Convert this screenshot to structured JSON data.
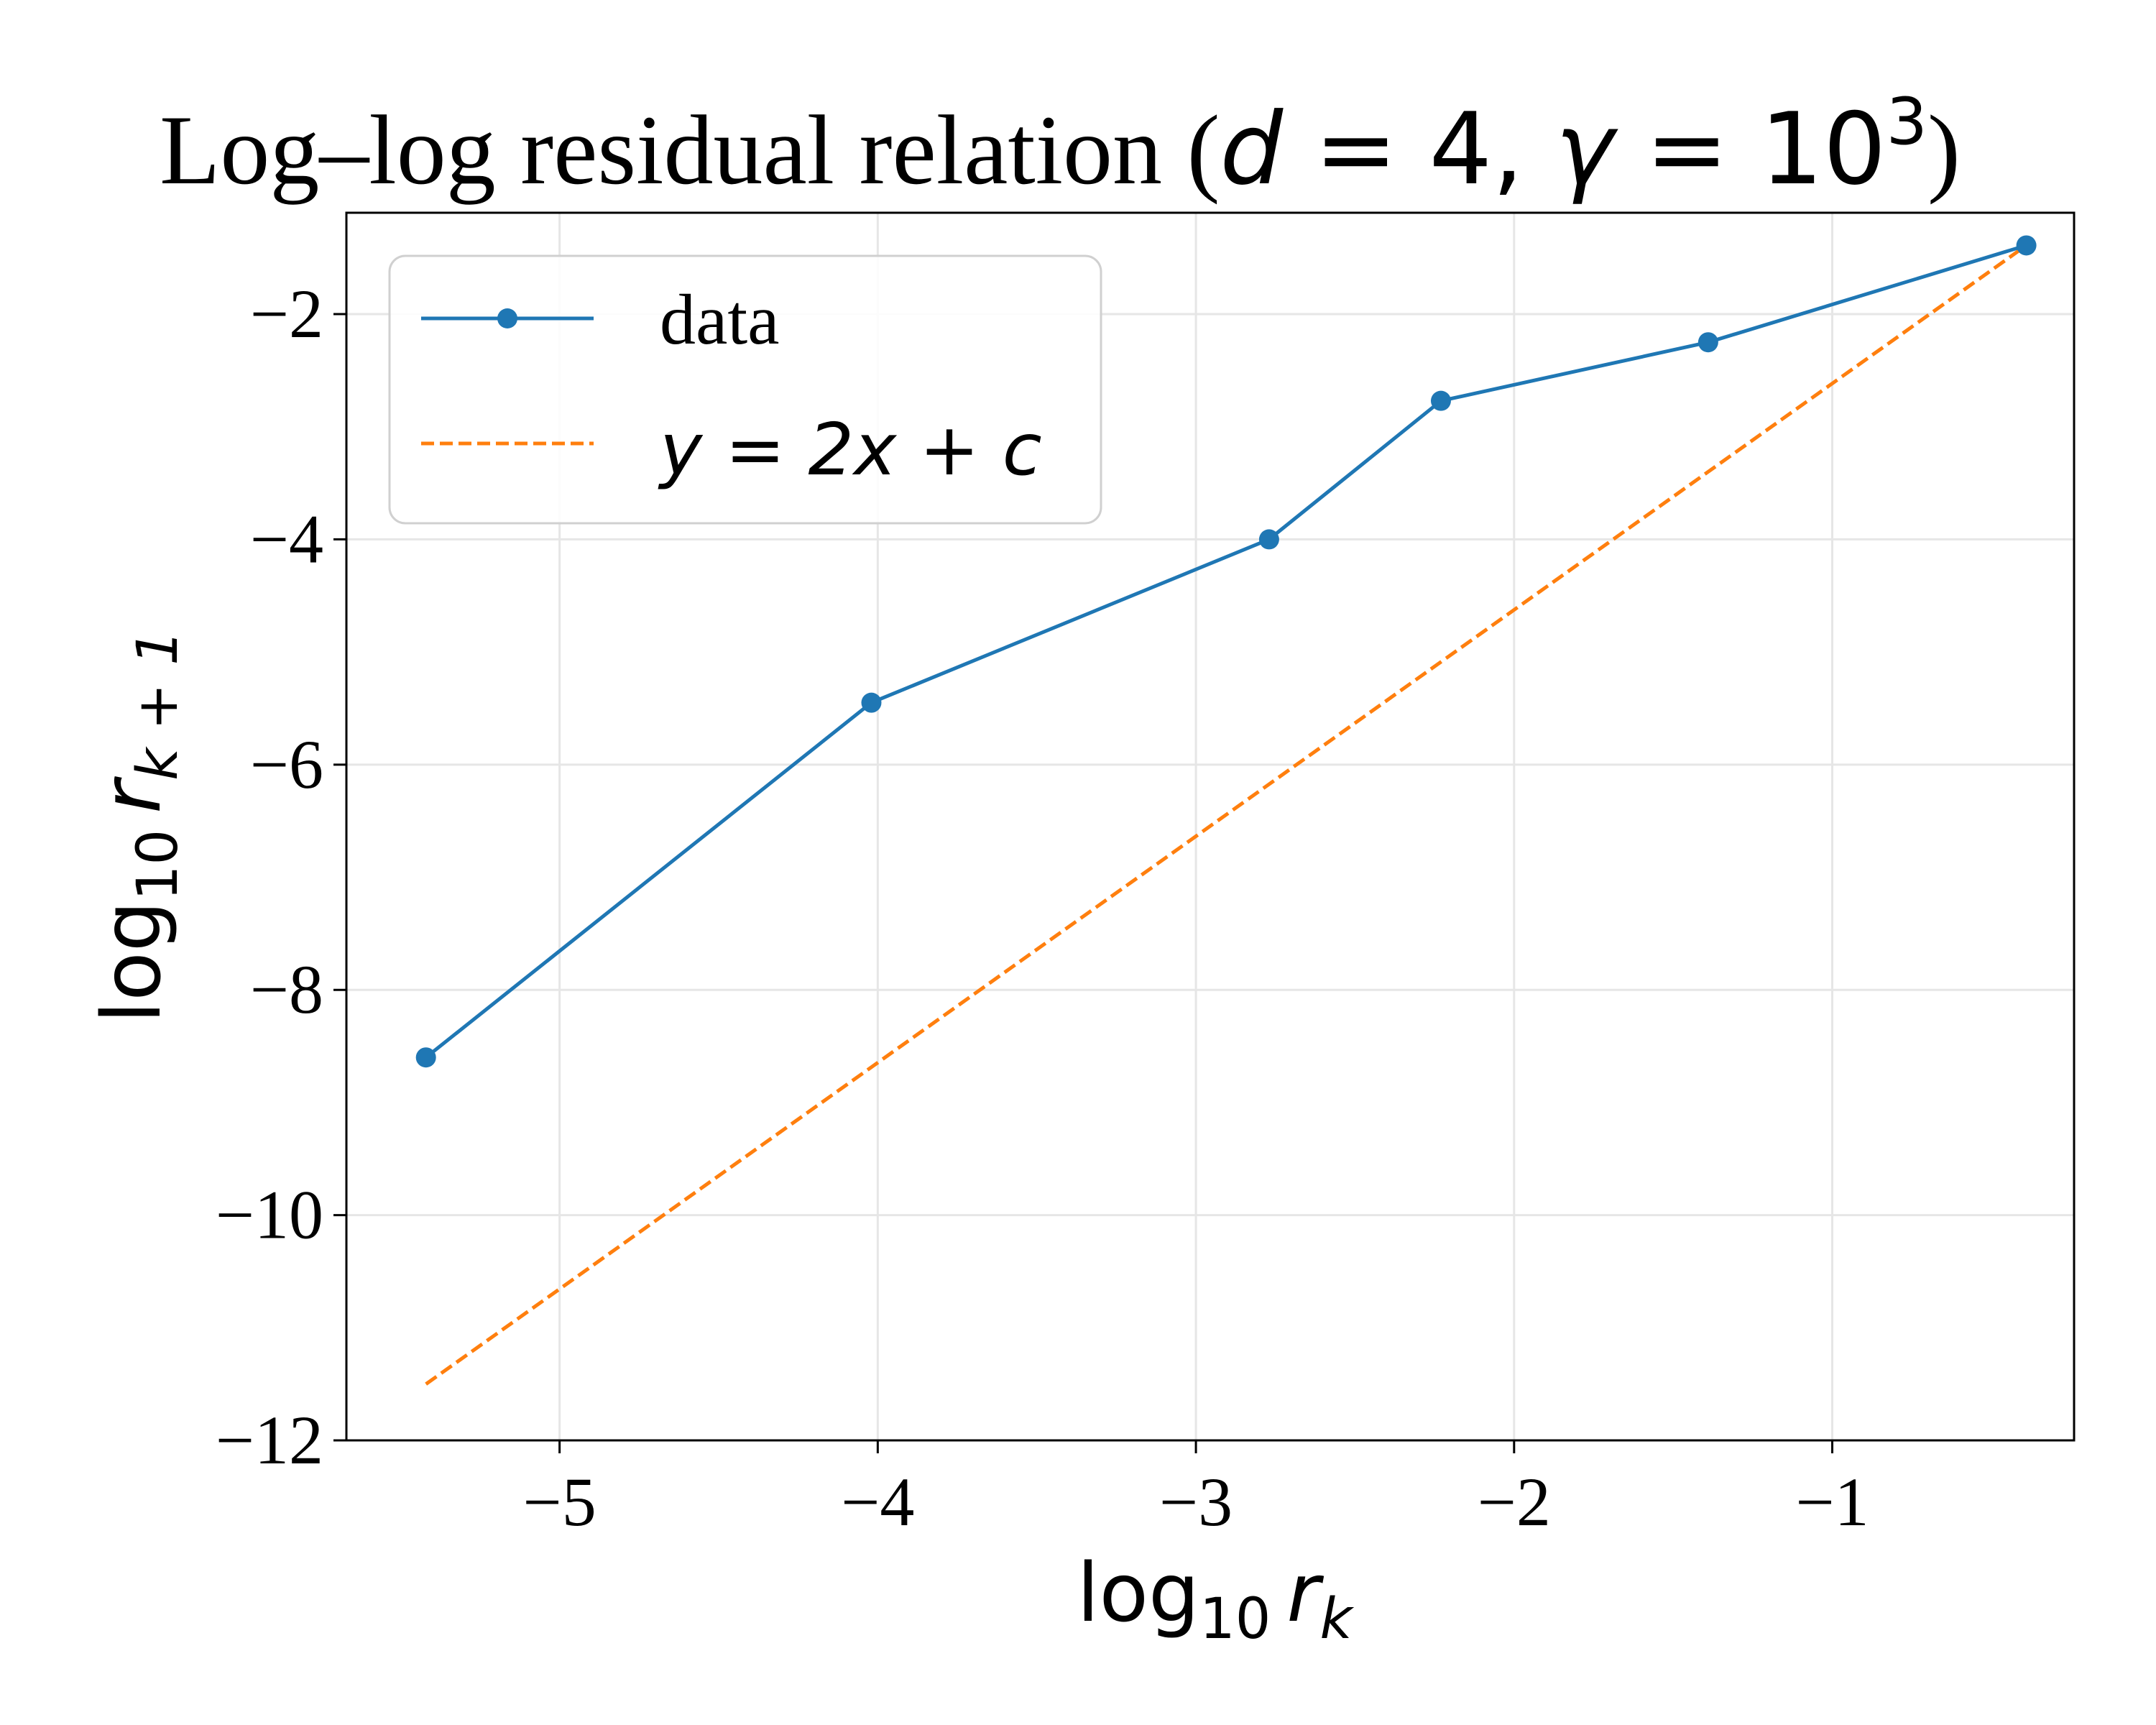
{
  "chart_data": {
    "type": "line",
    "title": {
      "prefix": "Log–log residual relation (",
      "d_text": "d",
      "d_value": " = 4, ",
      "gamma_text": "γ",
      "gamma_value": " = 10",
      "gamma_exp": "3",
      "suffix": ")"
    },
    "xlabel": {
      "base": "log",
      "sub": "10",
      "var": "r",
      "var_sub": "k"
    },
    "ylabel": {
      "base": "log",
      "sub": "10",
      "var": "r",
      "var_sub": "k + 1"
    },
    "xlim": [
      -5.67,
      -0.24
    ],
    "ylim": [
      -12,
      -1.1
    ],
    "xticks": [
      -5,
      -4,
      -3,
      -2,
      -1
    ],
    "xtick_labels": [
      "−5",
      "−4",
      "−3",
      "−2",
      "−1"
    ],
    "yticks": [
      -12,
      -10,
      -8,
      -6,
      -4,
      -2
    ],
    "ytick_labels": [
      "−12",
      "−10",
      "−8",
      "−6",
      "−4",
      "−2"
    ],
    "grid": true,
    "legend_placement": "top-left",
    "series": [
      {
        "name": "data",
        "style": "solid-marker",
        "color": "#1f77b4",
        "x": [
          -5.42,
          -4.02,
          -2.77,
          -2.23,
          -1.39,
          -0.39
        ],
        "y": [
          -8.6,
          -5.45,
          -4.0,
          -2.77,
          -2.25,
          -1.39
        ]
      },
      {
        "name": "y = 2x + c",
        "style": "dashed",
        "color": "#ff7f0e",
        "x": [
          -5.42,
          -0.39
        ],
        "y": [
          -11.5,
          -1.39
        ]
      }
    ]
  }
}
